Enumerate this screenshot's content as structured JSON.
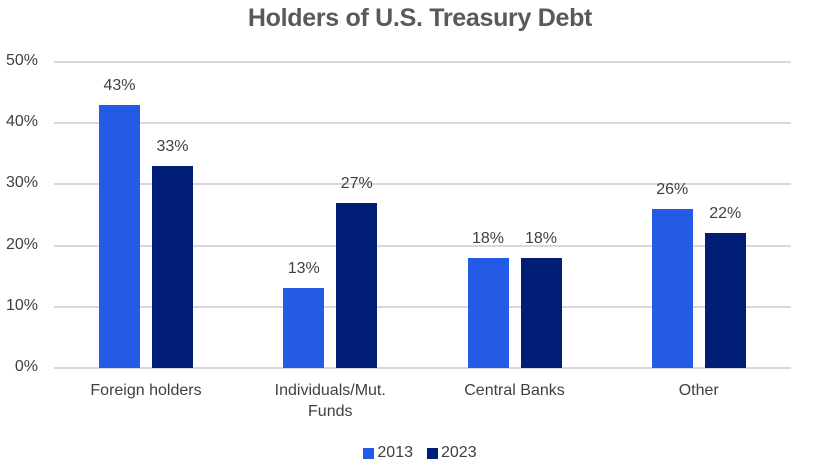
{
  "chart_data": {
    "type": "bar",
    "title": "Holders of U.S. Treasury Debt",
    "xlabel": "",
    "ylabel": "",
    "categories": [
      "Foreign holders",
      "Individuals/Mut. Funds",
      "Central Banks",
      "Other"
    ],
    "category_lines": [
      [
        "Foreign holders"
      ],
      [
        "Individuals/Mut.",
        "Funds"
      ],
      [
        "Central Banks"
      ],
      [
        "Other"
      ]
    ],
    "series": [
      {
        "name": "2013",
        "color": "#235ae6",
        "values": [
          43,
          13,
          18,
          26
        ],
        "labels": [
          "43%",
          "13%",
          "18%",
          "26%"
        ]
      },
      {
        "name": "2023",
        "color": "#001e78",
        "values": [
          33,
          27,
          18,
          22
        ],
        "labels": [
          "33%",
          "27%",
          "18%",
          "22%"
        ]
      }
    ],
    "ylim": [
      0,
      50
    ],
    "yticks": [
      0,
      10,
      20,
      30,
      40,
      50
    ],
    "ytick_labels": [
      "0%",
      "10%",
      "20%",
      "30%",
      "40%",
      "50%"
    ],
    "grid": true,
    "gridline_color": "#d9d9d9",
    "legend_position": "bottom",
    "data_labels": true
  }
}
